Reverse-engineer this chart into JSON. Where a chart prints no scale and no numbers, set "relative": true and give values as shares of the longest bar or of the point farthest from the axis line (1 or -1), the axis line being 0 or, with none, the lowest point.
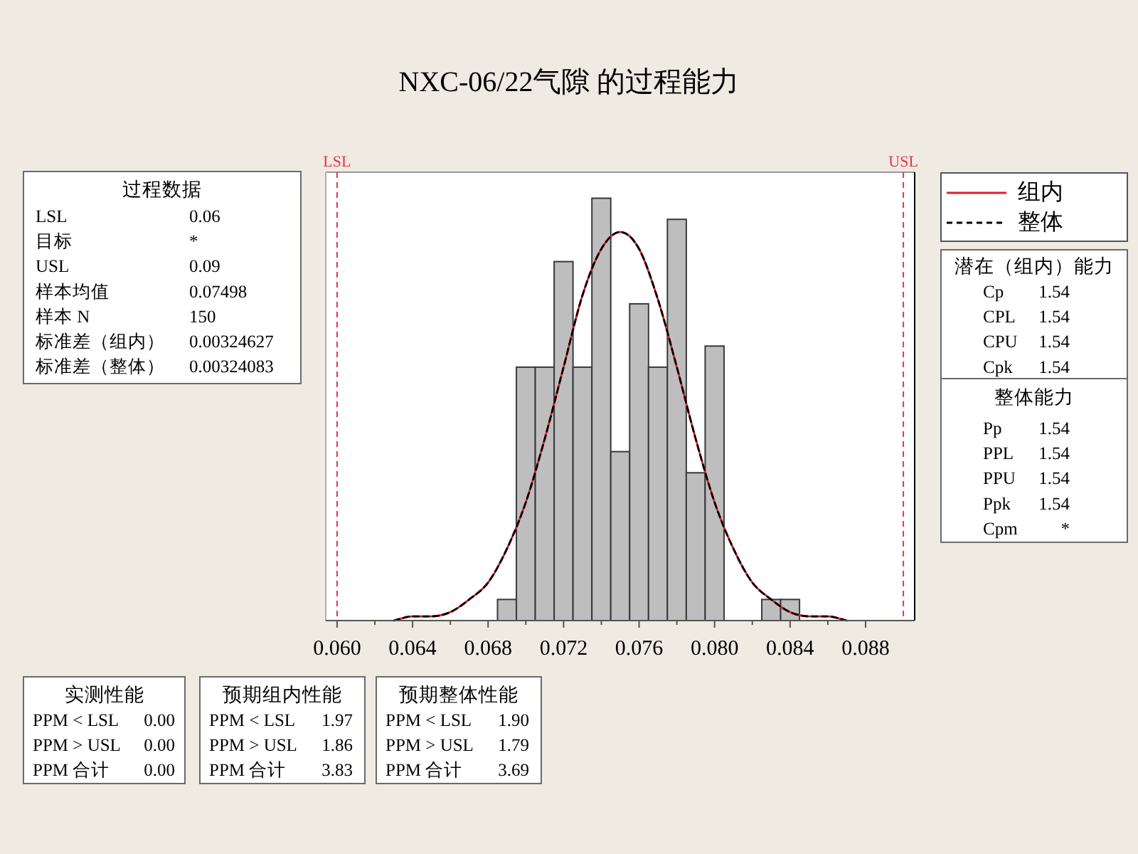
{
  "chart_data": [
    {
      "type": "histogram",
      "title": "NXC-06/22气隙 的过程能力",
      "relative": true,
      "tick_labels": "x",
      "legend": "top right",
      "bins": [
        0.0685,
        0.0695,
        0.0705,
        0.0715,
        0.0725,
        0.0735,
        0.0745,
        0.0755,
        0.0765,
        0.0775,
        0.0785,
        0.0795,
        0.0805,
        0.0815,
        0.0825,
        0.0835,
        0.0845
      ],
      "xlim": [
        0.0594,
        0.0906
      ],
      "xticks": [
        {
          "value": 0.06,
          "label": "0.060"
        },
        {
          "value": 0.062,
          "label": null
        },
        0.064,
        {
          "value": 0.066,
          "label": null
        },
        0.068,
        {
          "value": 0.07,
          "label": null
        },
        0.072,
        {
          "value": 0.074,
          "label": null
        },
        0.076,
        {
          "value": 0.078,
          "label": null
        },
        {
          "value": 0.08,
          "label": "0.080"
        },
        {
          "value": 0.082,
          "label": null
        },
        0.084,
        {
          "value": 0.086,
          "label": null
        },
        0.088
      ],
      "ref_lines": [
        {
          "axis": "x",
          "value": 0.06,
          "label": "LSL",
          "color": "#e8344a",
          "line_style": "dashed"
        },
        {
          "axis": "x",
          "value": 0.09,
          "label": "USL",
          "color": "#e8344a",
          "line_style": "dashed"
        }
      ],
      "series": [
        {
          "color": "#bebebe",
          "values": [
            0.05,
            0.6,
            0.6,
            0.85,
            0.6,
            1,
            0.4,
            0.75,
            0.6,
            0.95,
            0.35,
            0.65,
            0,
            0,
            0.05,
            0.05
          ]
        },
        {
          "name": "组内",
          "type": "line",
          "color": "#e0202a",
          "line_style": "solid",
          "x": [
            0.063,
            0.064,
            0.065,
            0.066,
            0.067,
            0.068,
            0.069,
            0.07,
            0.071,
            0.072,
            0.073,
            0.074,
            0.075,
            0.076,
            0.077,
            0.078,
            0.079,
            0.08,
            0.081,
            0.082,
            0.083,
            0.084,
            0.085,
            0.086,
            0.087
          ],
          "values": [
            0,
            0.01,
            0.01,
            0.02,
            0.05,
            0.09,
            0.17,
            0.28,
            0.43,
            0.6,
            0.77,
            0.88,
            0.92,
            0.88,
            0.76,
            0.6,
            0.43,
            0.28,
            0.17,
            0.09,
            0.05,
            0.02,
            0.01,
            0.01,
            0
          ]
        },
        {
          "name": "整体",
          "type": "line",
          "color": "#000000",
          "line_style": "dashed",
          "x": [
            0.063,
            0.064,
            0.065,
            0.066,
            0.067,
            0.068,
            0.069,
            0.07,
            0.071,
            0.072,
            0.073,
            0.074,
            0.075,
            0.076,
            0.077,
            0.078,
            0.079,
            0.08,
            0.081,
            0.082,
            0.083,
            0.084,
            0.085,
            0.086,
            0.087
          ],
          "values": [
            0,
            0.01,
            0.01,
            0.02,
            0.05,
            0.09,
            0.17,
            0.28,
            0.43,
            0.6,
            0.77,
            0.88,
            0.92,
            0.88,
            0.76,
            0.6,
            0.43,
            0.28,
            0.17,
            0.09,
            0.05,
            0.02,
            0.01,
            0.01,
            0
          ]
        }
      ]
    },
    {
      "type": "other",
      "title": "过程数据",
      "annotations": [
        "LSL",
        "0.06",
        "目标",
        "*",
        "USL",
        "0.09",
        "样本均值",
        "0.07498",
        "样本 N",
        "150",
        "标准差（组内）",
        "0.00324627",
        "标准差（整体）",
        "0.00324083"
      ]
    },
    {
      "type": "other",
      "title": "潜在（组内）能力",
      "annotations": [
        "Cp",
        "1.54",
        "CPL",
        "1.54",
        "CPU",
        "1.54",
        "Cpk",
        "1.54"
      ]
    },
    {
      "type": "other",
      "title": "整体能力",
      "annotations": [
        "Pp",
        "1.54",
        "PPL",
        "1.54",
        "PPU",
        "1.54",
        "Ppk",
        "1.54",
        "Cpm",
        "*"
      ]
    },
    {
      "type": "other",
      "title": "实测性能",
      "annotations": [
        "PPM < LSL",
        "0.00",
        "PPM > USL",
        "0.00",
        "PPM 合计",
        "0.00"
      ]
    },
    {
      "type": "other",
      "title": "预期组内性能",
      "annotations": [
        "PPM < LSL",
        "1.97",
        "PPM > USL",
        "1.86",
        "PPM 合计",
        "3.83"
      ]
    },
    {
      "type": "other",
      "title": "预期整体性能",
      "annotations": [
        "PPM < LSL",
        "1.90",
        "PPM > USL",
        "1.79",
        "PPM 合计",
        "3.69"
      ]
    }
  ]
}
